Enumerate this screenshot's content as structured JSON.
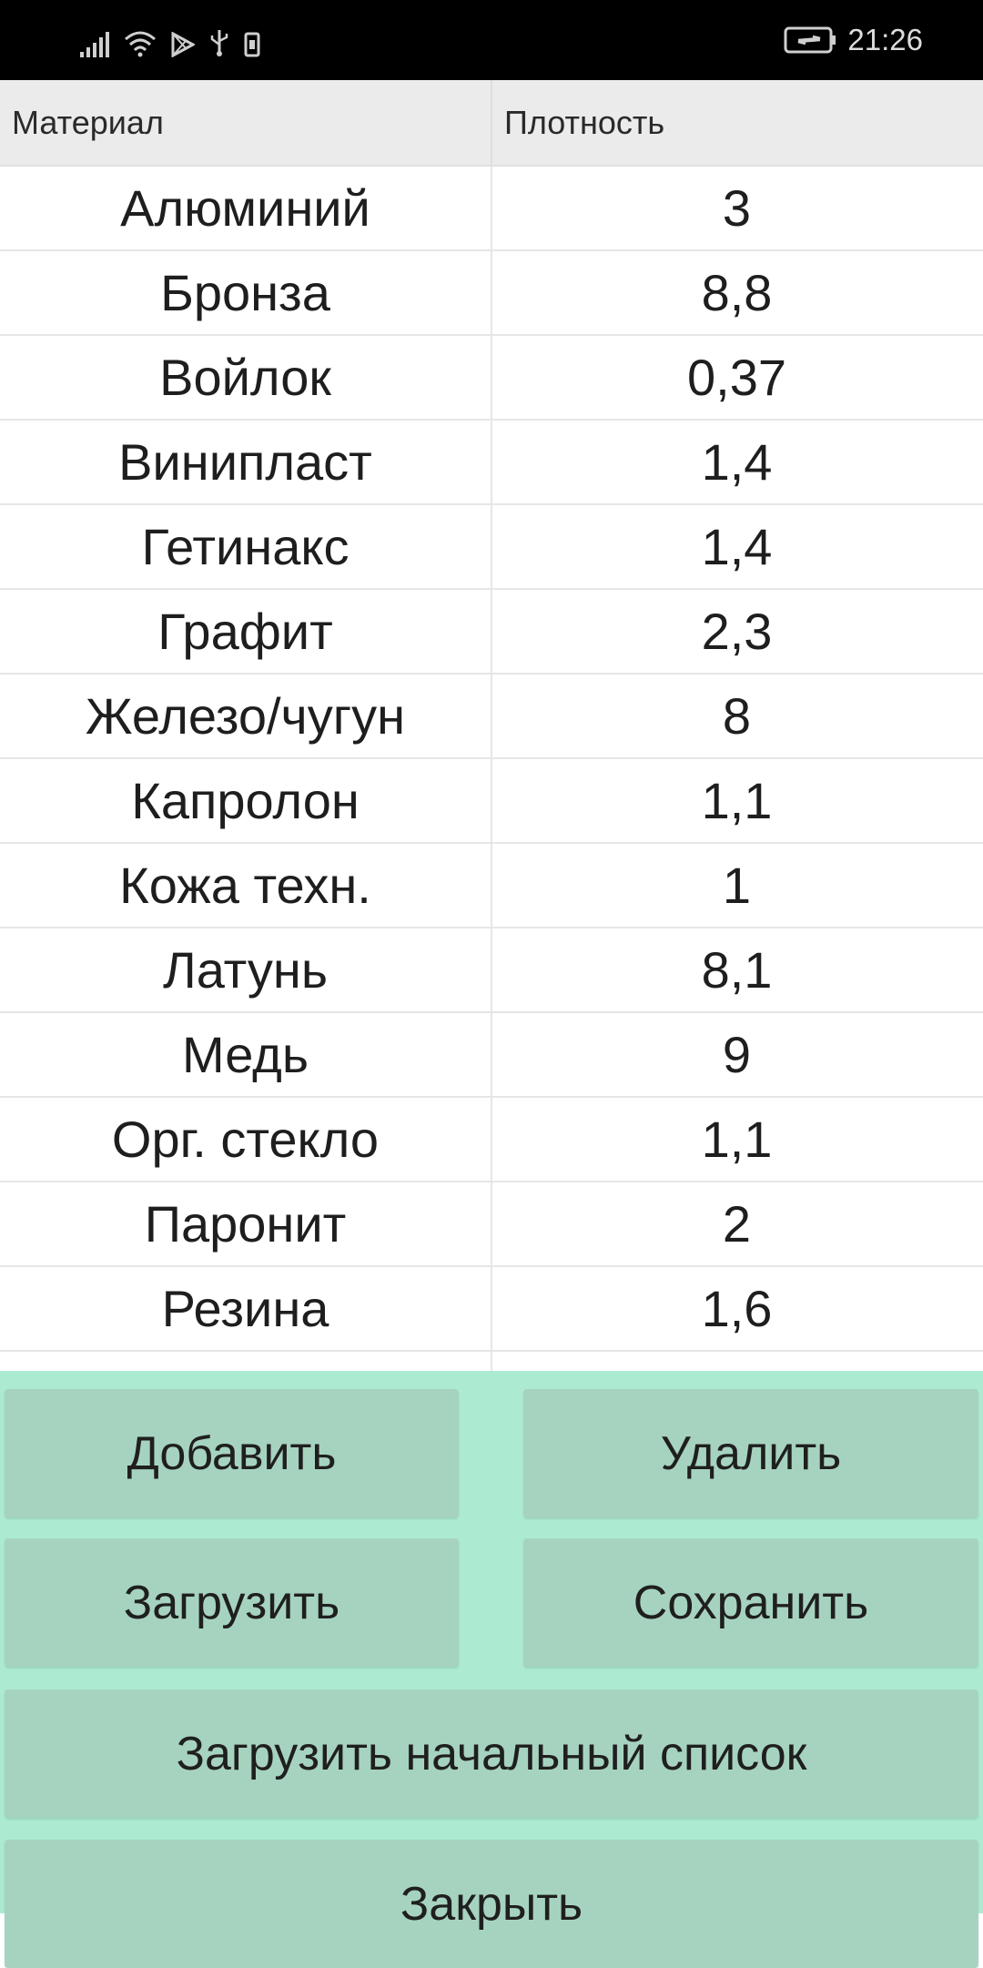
{
  "status_bar": {
    "time": "21:26",
    "icons": [
      "signal-icon",
      "wifi-icon",
      "play-store-icon",
      "usb-icon",
      "sim-icon",
      "battery-charging-icon"
    ]
  },
  "table": {
    "headers": [
      "Материал",
      "Плотность"
    ],
    "rows": [
      {
        "material": "Алюминий",
        "density": "3"
      },
      {
        "material": "Бронза",
        "density": "8,8"
      },
      {
        "material": "Войлок",
        "density": "0,37"
      },
      {
        "material": "Винипласт",
        "density": "1,4"
      },
      {
        "material": "Гетинакс",
        "density": "1,4"
      },
      {
        "material": "Графит",
        "density": "2,3"
      },
      {
        "material": "Железо/чугун",
        "density": "8"
      },
      {
        "material": "Капролон",
        "density": "1,1"
      },
      {
        "material": "Кожа техн.",
        "density": "1"
      },
      {
        "material": "Латунь",
        "density": "8,1"
      },
      {
        "material": "Медь",
        "density": "9"
      },
      {
        "material": "Орг. стекло",
        "density": "1,1"
      },
      {
        "material": "Паронит",
        "density": "2"
      },
      {
        "material": "Резина",
        "density": "1,6"
      },
      {
        "material": "",
        "density": ""
      }
    ]
  },
  "buttons": {
    "add": "Добавить",
    "delete": "Удалить",
    "load": "Загрузить",
    "save": "Сохранить",
    "load_default": "Загрузить начальный список",
    "close": "Закрыть"
  },
  "colors": {
    "status_bar_bg": "#000000",
    "header_bg": "#ebebeb",
    "panel_bg": "#acebd2",
    "button_bg": "#a6d3bf"
  }
}
